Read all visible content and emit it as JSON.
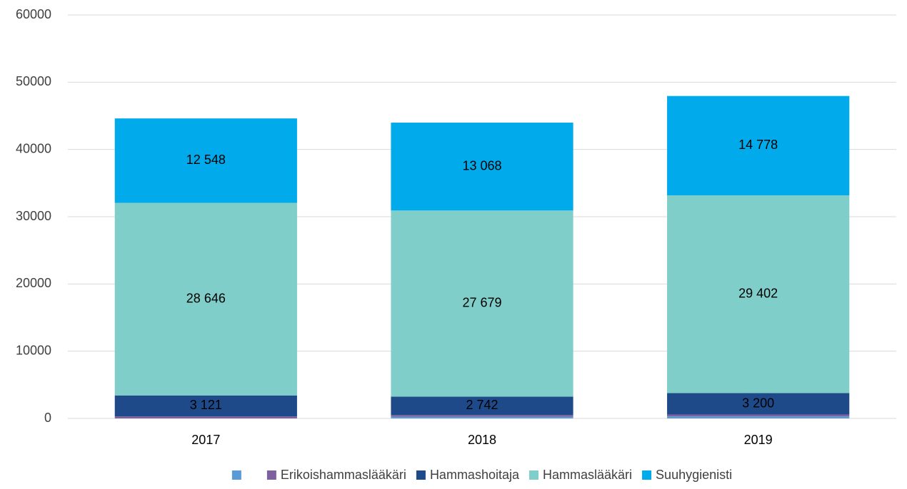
{
  "chart_data": {
    "type": "stacked_bar",
    "categories": [
      "2017",
      "2018",
      "2019"
    ],
    "series": [
      {
        "name": null,
        "color": "#5b9bd5",
        "values": [
          0,
          250,
          300
        ]
      },
      {
        "name": "Erikoishammaslääkäri",
        "color": "#7e5fa0",
        "values": [
          300,
          250,
          270
        ]
      },
      {
        "name": "Hammashoitaja",
        "color": "#1f4a8a",
        "label_color": "#ffffff",
        "values": [
          3121,
          2742,
          3200
        ],
        "value_labels": [
          "3 121",
          "2 742",
          "3 200"
        ]
      },
      {
        "name": "Hammaslääkäri",
        "color": "#7fcec9",
        "label_color": "#000000",
        "values": [
          28646,
          27679,
          29402
        ],
        "value_labels": [
          "28 646",
          "27 679",
          "29 402"
        ]
      },
      {
        "name": "Suuhygienisti",
        "color": "#00aaeb",
        "label_color": "#000000",
        "values": [
          12548,
          13068,
          14778
        ],
        "value_labels": [
          "12 548",
          "13 068",
          "14 778"
        ]
      }
    ],
    "ylim": [
      0,
      60000
    ],
    "yticks": [
      0,
      10000,
      20000,
      30000,
      40000,
      50000,
      60000
    ],
    "grid": true,
    "legend": "bottom"
  }
}
